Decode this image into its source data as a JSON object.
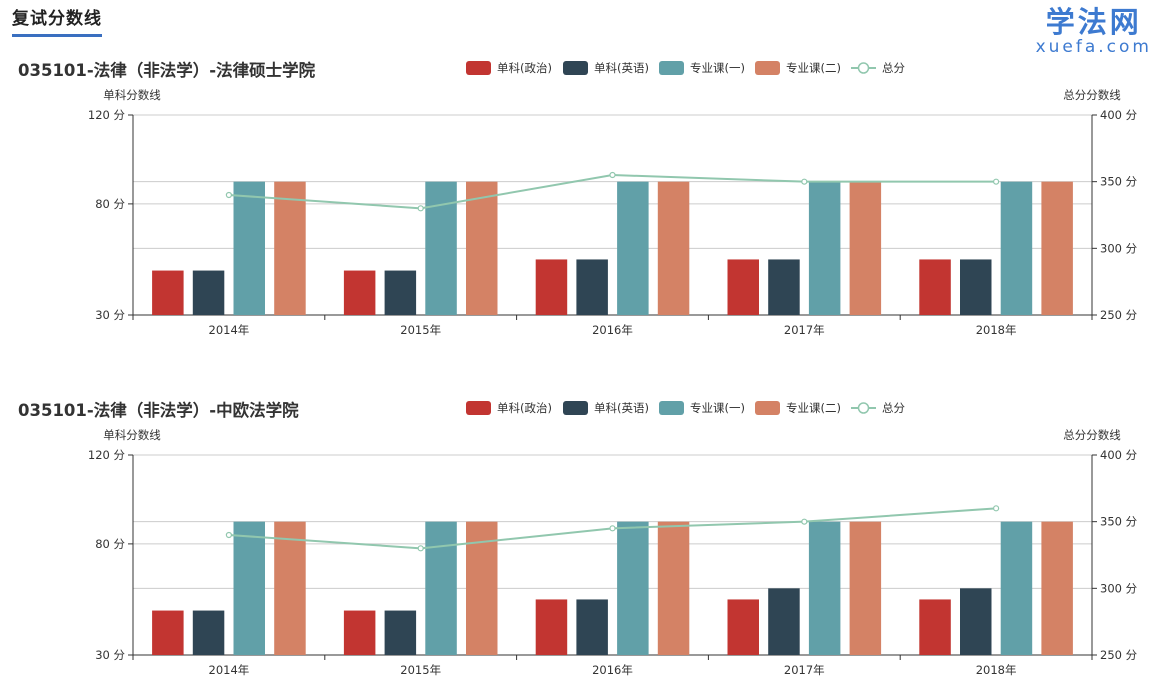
{
  "header": {
    "title": "复试分数线"
  },
  "logo": {
    "cn": "学法网",
    "en": "xuefa.com"
  },
  "colors": {
    "politics": "#c23531",
    "english": "#2f4554",
    "major1": "#61a0a8",
    "major2": "#d48265",
    "total": "#91c7ae",
    "grid": "#cccccc",
    "axis": "#333333"
  },
  "chart_data": [
    {
      "type": "bar",
      "title": "035101-法律（非法学）-法律硕士学院",
      "ylabel_left": "单科分数线",
      "ylabel_right": "总分分数线",
      "yticks_left": [
        "30 分",
        "80 分",
        "120 分"
      ],
      "yticks_right": [
        "250 分",
        "300 分",
        "350 分",
        "400 分"
      ],
      "ylim_left": [
        30,
        120
      ],
      "ylim_right": [
        250,
        400
      ],
      "grid": true,
      "legend_position": "top-center",
      "categories": [
        "2014年",
        "2015年",
        "2016年",
        "2017年",
        "2018年"
      ],
      "series": [
        {
          "name": "单科(政治)",
          "type": "bar",
          "axis": "left",
          "color": "politics",
          "values": [
            50,
            50,
            55,
            55,
            55
          ]
        },
        {
          "name": "单科(英语)",
          "type": "bar",
          "axis": "left",
          "color": "english",
          "values": [
            50,
            50,
            55,
            55,
            55
          ]
        },
        {
          "name": "专业课(一)",
          "type": "bar",
          "axis": "left",
          "color": "major1",
          "values": [
            90,
            90,
            90,
            90,
            90
          ]
        },
        {
          "name": "专业课(二)",
          "type": "bar",
          "axis": "left",
          "color": "major2",
          "values": [
            90,
            90,
            90,
            90,
            90
          ]
        },
        {
          "name": "总分",
          "type": "line",
          "axis": "right",
          "color": "total",
          "values": [
            340,
            330,
            355,
            350,
            350
          ]
        }
      ]
    },
    {
      "type": "bar",
      "title": "035101-法律（非法学）-中欧法学院",
      "ylabel_left": "单科分数线",
      "ylabel_right": "总分分数线",
      "yticks_left": [
        "30 分",
        "80 分",
        "120 分"
      ],
      "yticks_right": [
        "250 分",
        "300 分",
        "350 分",
        "400 分"
      ],
      "ylim_left": [
        30,
        120
      ],
      "ylim_right": [
        250,
        400
      ],
      "grid": true,
      "legend_position": "top-center",
      "categories": [
        "2014年",
        "2015年",
        "2016年",
        "2017年",
        "2018年"
      ],
      "series": [
        {
          "name": "单科(政治)",
          "type": "bar",
          "axis": "left",
          "color": "politics",
          "values": [
            50,
            50,
            55,
            55,
            55
          ]
        },
        {
          "name": "单科(英语)",
          "type": "bar",
          "axis": "left",
          "color": "english",
          "values": [
            50,
            50,
            55,
            60,
            60
          ]
        },
        {
          "name": "专业课(一)",
          "type": "bar",
          "axis": "left",
          "color": "major1",
          "values": [
            90,
            90,
            90,
            90,
            90
          ]
        },
        {
          "name": "专业课(二)",
          "type": "bar",
          "axis": "left",
          "color": "major2",
          "values": [
            90,
            90,
            90,
            90,
            90
          ]
        },
        {
          "name": "总分",
          "type": "line",
          "axis": "right",
          "color": "total",
          "values": [
            340,
            330,
            345,
            350,
            360
          ]
        }
      ]
    }
  ]
}
